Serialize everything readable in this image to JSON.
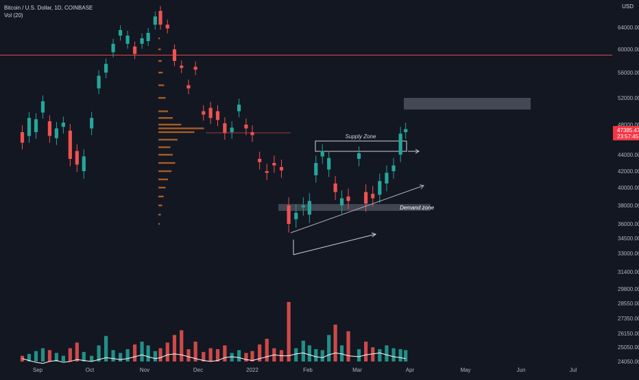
{
  "legend": {
    "symbol": "Bitcoin / U.S. Dollar, 1D, COINBASE",
    "volume": "Vol (20)"
  },
  "currency": "USD",
  "colors": {
    "background": "#131722",
    "bull": "#26a69a",
    "bear": "#ef5350",
    "profile": "#c46a26",
    "resistance": "#e04a4a",
    "price_label": "#f23645",
    "volume_ma": "#ffffff",
    "zone": "#4a4e5a"
  },
  "chart_data": {
    "type": "candlestick",
    "price_axis": {
      "ticks": [
        "64000.00",
        "60000.00",
        "56000.00",
        "52000.00",
        "48000.00",
        "44000.00",
        "42000.00",
        "40000.00",
        "38000.00",
        "36000.00",
        "34500.00",
        "33000.00",
        "31400.00",
        "29800.00",
        "28550.00",
        "27350.00",
        "26150.00",
        "25050.00",
        "24050.00"
      ],
      "last_price": "47385.47",
      "countdown": "23:57:45"
    },
    "time_axis": [
      "Sep",
      "Oct",
      "Nov",
      "Dec",
      "2022",
      "Feb",
      "Mar",
      "Apr",
      "May",
      "Jun",
      "Jul"
    ],
    "annotations": {
      "supply_zone": "Supply Zone",
      "demand_zone": "Demand zone"
    },
    "horizontal_line": 59000,
    "series": [
      {
        "date": "Aug 23",
        "open": 47000,
        "close": 45600
      },
      {
        "date": "Aug 27",
        "open": 46500,
        "close": 49000
      },
      {
        "date": "Aug 31",
        "open": 47000,
        "close": 48800
      },
      {
        "date": "Sep 4",
        "open": 49800,
        "close": 51500
      },
      {
        "date": "Sep 8",
        "open": 48500,
        "close": 46500
      },
      {
        "date": "Sep 12",
        "open": 46200,
        "close": 47500
      },
      {
        "date": "Sep 16",
        "open": 47700,
        "close": 48300
      },
      {
        "date": "Sep 20",
        "open": 47200,
        "close": 43500
      },
      {
        "date": "Sep 24",
        "open": 44500,
        "close": 42800
      },
      {
        "date": "Sep 28",
        "open": 42000,
        "close": 43800
      },
      {
        "date": "Oct 2",
        "open": 47500,
        "close": 49000
      },
      {
        "date": "Oct 6",
        "open": 53500,
        "close": 55500
      },
      {
        "date": "Oct 10",
        "open": 56000,
        "close": 57500
      },
      {
        "date": "Oct 14",
        "open": 59500,
        "close": 61000
      },
      {
        "date": "Oct 18",
        "open": 62500,
        "close": 63500
      },
      {
        "date": "Oct 22",
        "open": 61000,
        "close": 62500
      },
      {
        "date": "Oct 26",
        "open": 60500,
        "close": 59200
      },
      {
        "date": "Oct 30",
        "open": 61000,
        "close": 62000
      },
      {
        "date": "Nov 3",
        "open": 61500,
        "close": 63000
      },
      {
        "date": "Nov 7",
        "open": 64500,
        "close": 66000
      },
      {
        "date": "Nov 10",
        "open": 67000,
        "close": 64500
      },
      {
        "date": "Nov 14",
        "open": 64500,
        "close": 63800
      },
      {
        "date": "Nov 18",
        "open": 60000,
        "close": 58000
      },
      {
        "date": "Nov 22",
        "open": 57200,
        "close": 56800
      },
      {
        "date": "Nov 26",
        "open": 54000,
        "close": 53500
      },
      {
        "date": "Nov 30",
        "open": 57000,
        "close": 56500
      },
      {
        "date": "Dec 4",
        "open": 50000,
        "close": 49500
      },
      {
        "date": "Dec 8",
        "open": 50500,
        "close": 49000
      },
      {
        "date": "Dec 12",
        "open": 50000,
        "close": 48700
      },
      {
        "date": "Dec 16",
        "open": 48200,
        "close": 46900
      },
      {
        "date": "Dec 20",
        "open": 47000,
        "close": 47600
      },
      {
        "date": "Dec 24",
        "open": 50000,
        "close": 51000
      },
      {
        "date": "Dec 28",
        "open": 48000,
        "close": 47500
      },
      {
        "date": "Jan 1",
        "open": 47000,
        "close": 46600
      },
      {
        "date": "Jan 5",
        "open": 43500,
        "close": 43100
      },
      {
        "date": "Jan 9",
        "open": 42000,
        "close": 41800
      },
      {
        "date": "Jan 13",
        "open": 43000,
        "close": 42700
      },
      {
        "date": "Jan 17",
        "open": 42500,
        "close": 42100
      },
      {
        "date": "Jan 21",
        "open": 38000,
        "close": 36000
      },
      {
        "date": "Jan 25",
        "open": 36500,
        "close": 37200
      },
      {
        "date": "Jan 29",
        "open": 37800,
        "close": 38000
      },
      {
        "date": "Feb 2",
        "open": 37000,
        "close": 38500
      },
      {
        "date": "Feb 6",
        "open": 41500,
        "close": 43000
      },
      {
        "date": "Feb 10",
        "open": 43800,
        "close": 44500
      },
      {
        "date": "Feb 14",
        "open": 42200,
        "close": 43600
      },
      {
        "date": "Feb 18",
        "open": 40500,
        "close": 39500
      },
      {
        "date": "Feb 22",
        "open": 38000,
        "close": 38800
      },
      {
        "date": "Feb 26",
        "open": 39000,
        "close": 38500
      },
      {
        "date": "Mar 2",
        "open": 43500,
        "close": 44200
      },
      {
        "date": "Mar 6",
        "open": 39500,
        "close": 38200
      },
      {
        "date": "Mar 10",
        "open": 39300,
        "close": 38800
      },
      {
        "date": "Mar 14",
        "open": 39200,
        "close": 40800
      },
      {
        "date": "Mar 18",
        "open": 40500,
        "close": 41800
      },
      {
        "date": "Mar 22",
        "open": 42000,
        "close": 42700
      },
      {
        "date": "Mar 26",
        "open": 44000,
        "close": 46800
      },
      {
        "date": "Mar 29",
        "open": 47000,
        "close": 47400
      }
    ],
    "volume_ma": [
      25900,
      25700,
      25500,
      25400,
      25600,
      25700,
      25500,
      25600,
      25800,
      25700,
      25600,
      25800,
      26000,
      25900,
      25800,
      25900,
      26100,
      26300,
      26100,
      25900,
      26000,
      26300,
      26400,
      26300,
      26100,
      25900,
      25700,
      25600,
      25700,
      26000,
      26100,
      26000,
      25800,
      25700,
      25900,
      26100,
      26300,
      26200,
      26200,
      26400,
      26500,
      26300,
      26100,
      26000,
      26300,
      26500,
      26400,
      26200,
      26100,
      26300,
      26400,
      26500,
      26300,
      26100,
      26000,
      25900
    ],
    "volume": [
      26200,
      26400,
      26700,
      27000,
      26800,
      26500,
      26200,
      27000,
      27600,
      26600,
      26200,
      27300,
      28300,
      26800,
      26500,
      26900,
      27400,
      27700,
      27300,
      26700,
      27000,
      27600,
      28400,
      28900,
      26900,
      27700,
      26600,
      27000,
      26900,
      27300,
      26500,
      26800,
      26500,
      26700,
      27400,
      28000,
      27000,
      26800,
      31900,
      27000,
      27800,
      27300,
      26900,
      26800,
      28400,
      29500,
      27300,
      28800,
      26900,
      27700,
      27100,
      26900,
      27300,
      27000,
      26900,
      26800
    ]
  }
}
